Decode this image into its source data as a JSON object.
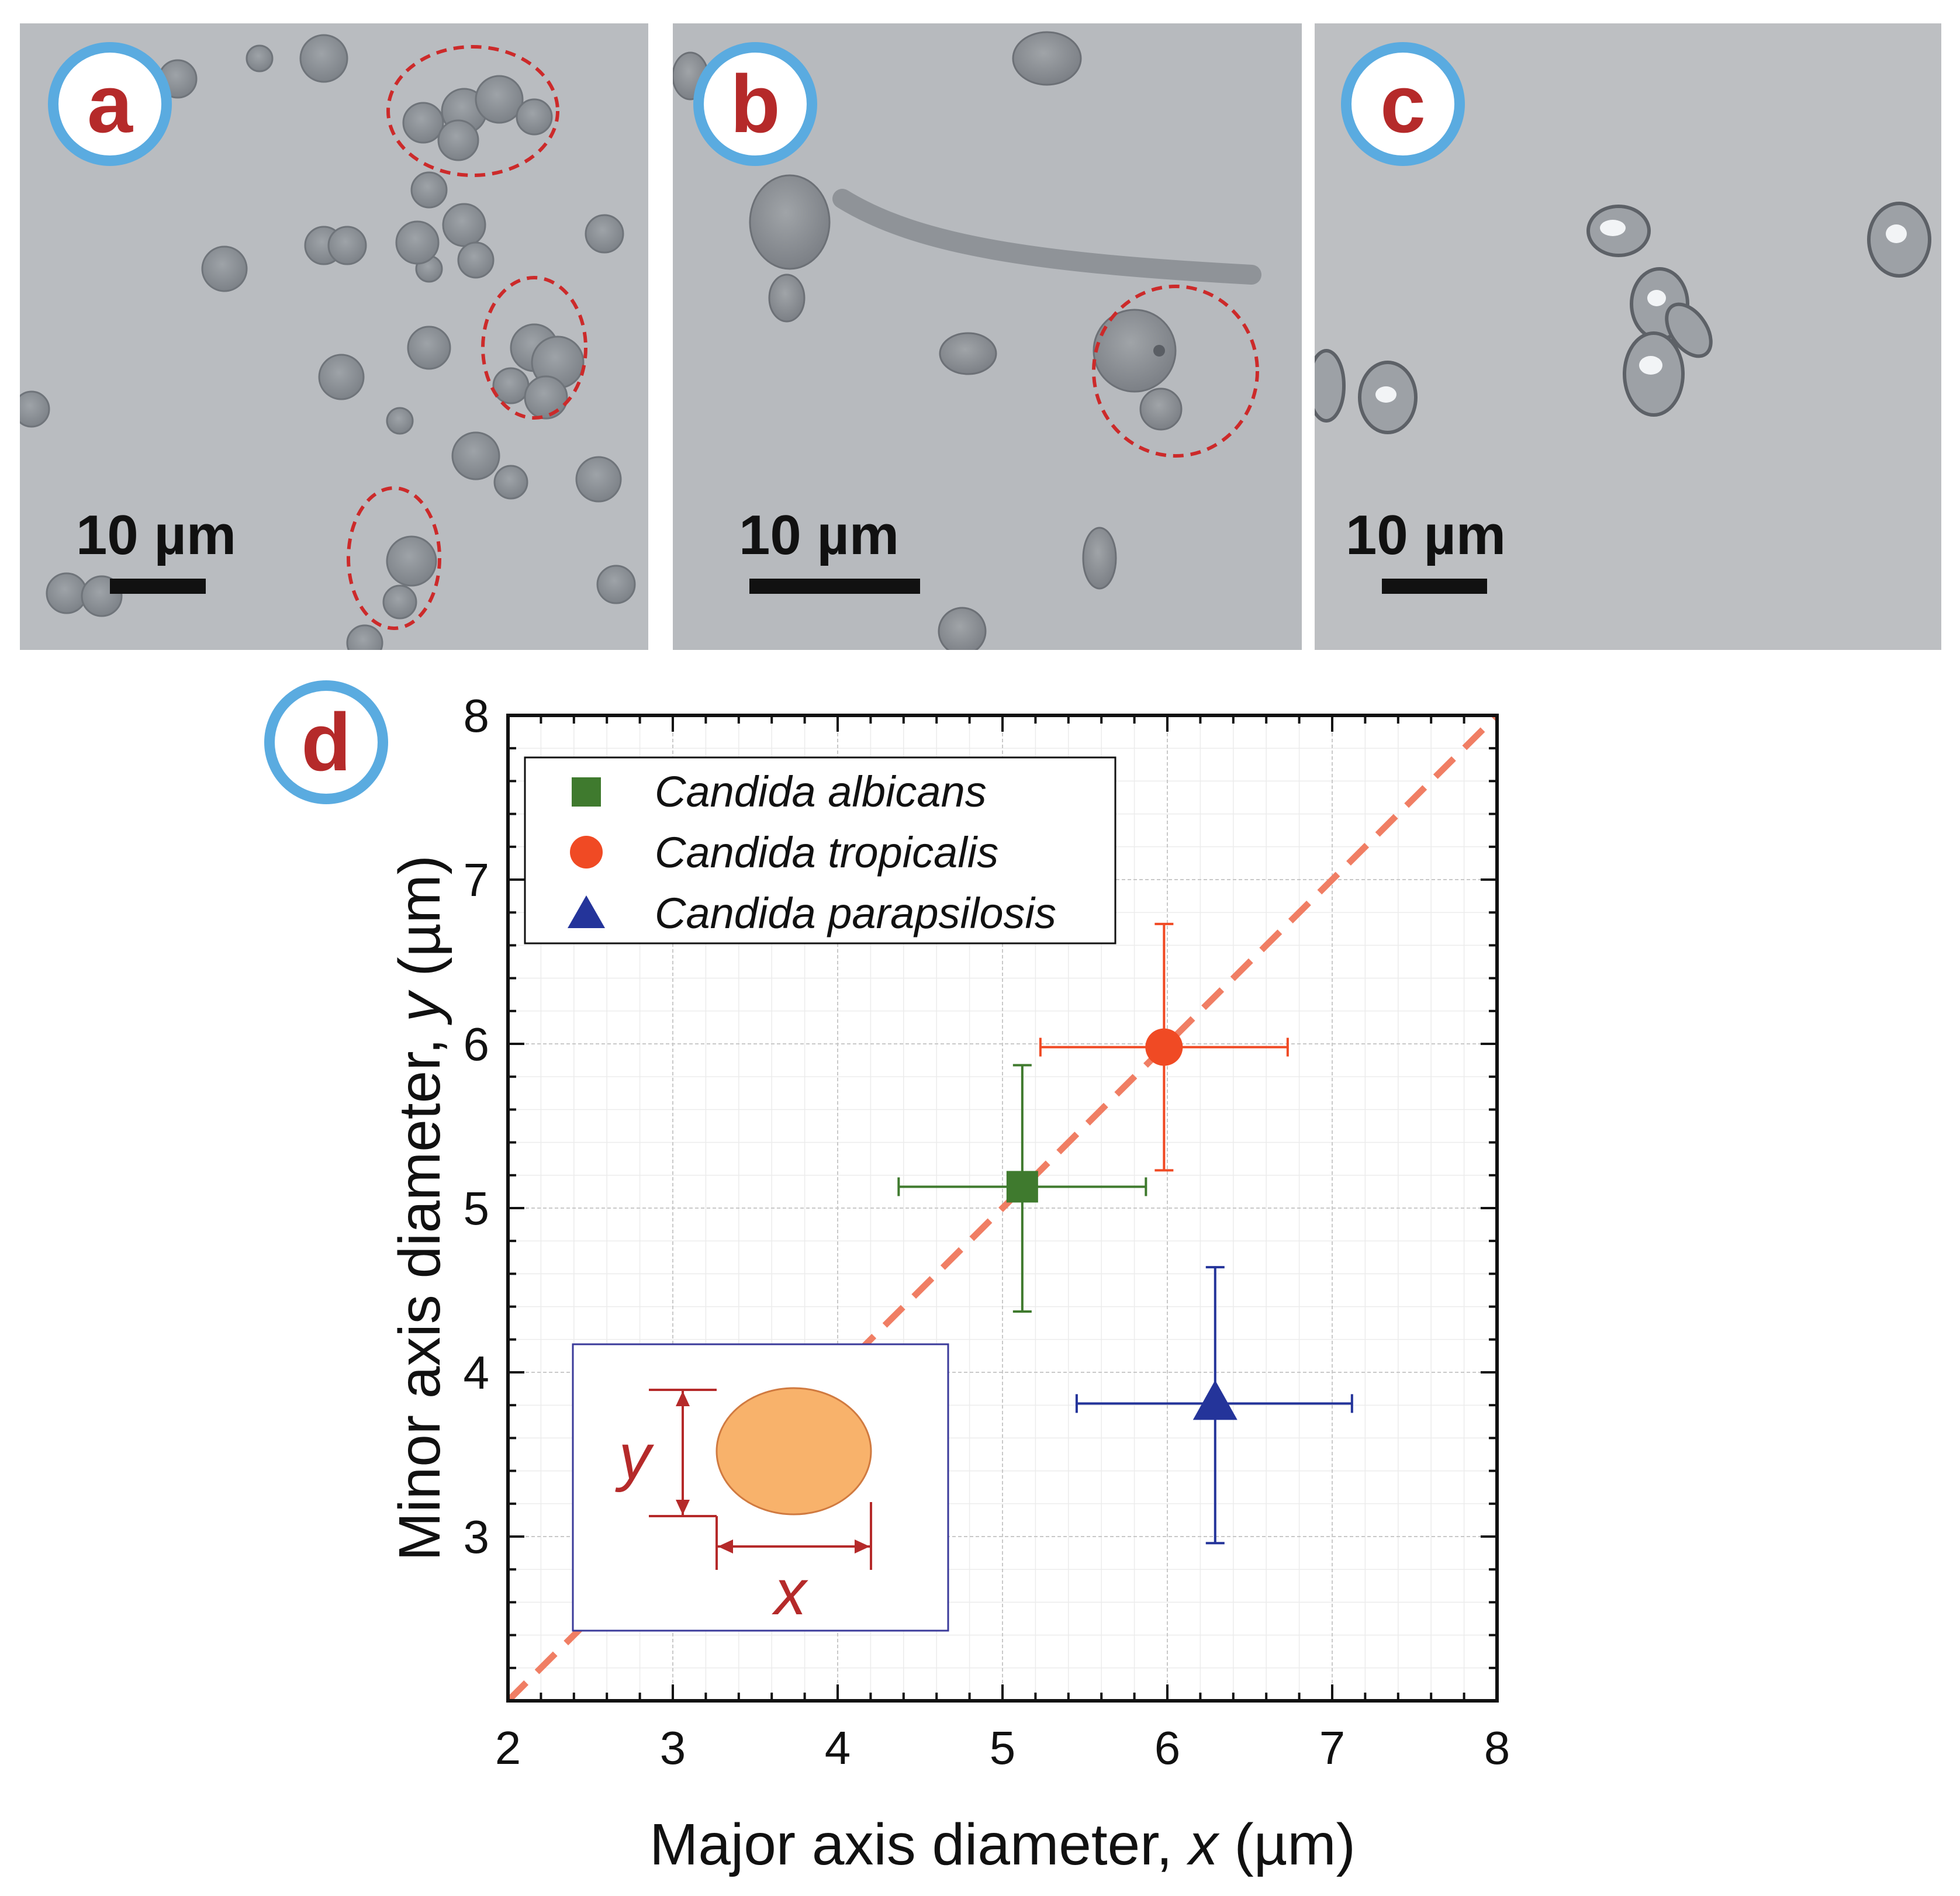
{
  "panels": {
    "a": {
      "letter": "a",
      "scale_label": "10 µm"
    },
    "b": {
      "letter": "b",
      "scale_label": "10 µm"
    },
    "c": {
      "letter": "c",
      "scale_label": "10 µm"
    },
    "d": {
      "letter": "d"
    }
  },
  "colors": {
    "badge_ring": "#5aabe0",
    "badge_letter": "#b52a2a",
    "albicans": "#3f7a2e",
    "tropicalis": "#f04a24",
    "parapsilosis": "#24349a",
    "diagonal": "#f07e64",
    "inset_ellipse": "#f8b26b",
    "inset_frame": "#3a3a9a"
  },
  "chart_data": {
    "type": "scatter",
    "xlabel": {
      "text": "Major axis diameter, ",
      "var": "x",
      "unit": " (µm)"
    },
    "ylabel": {
      "text": "Minor axis diameter, ",
      "var": "y",
      "unit": " (µm)"
    },
    "xlim": [
      2,
      8
    ],
    "ylim": [
      2,
      8
    ],
    "xticks": [
      "2",
      "3",
      "4",
      "5",
      "6",
      "7",
      "8"
    ],
    "yticks": [
      "3",
      "4",
      "5",
      "6",
      "7",
      "8"
    ],
    "grid": true,
    "legend_position": "top-left",
    "reference_line": {
      "type": "y=x",
      "style": "dashed"
    },
    "series": [
      {
        "name": "Candida albicans",
        "marker": "square",
        "x": 5.12,
        "y": 5.13,
        "x_err": [
          4.37,
          5.87
        ],
        "y_err": [
          4.37,
          5.87
        ]
      },
      {
        "name": "Candida tropicalis",
        "marker": "circle",
        "x": 5.98,
        "y": 5.98,
        "x_err": [
          5.23,
          6.73
        ],
        "y_err": [
          5.23,
          6.73
        ]
      },
      {
        "name": "Candida parapsilosis",
        "marker": "triangle",
        "x": 6.29,
        "y": 3.81,
        "x_err": [
          5.45,
          7.12
        ],
        "y_err": [
          2.96,
          4.64
        ]
      }
    ],
    "inset": {
      "x_label": "x",
      "y_label": "y"
    }
  }
}
